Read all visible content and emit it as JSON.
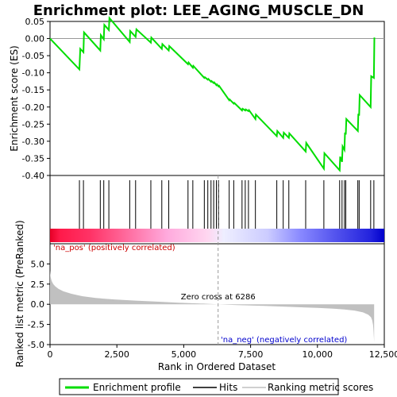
{
  "chart_data": {
    "type": "line",
    "title": "Enrichment plot: LEE_AGING_MUSCLE_DN",
    "top_panel": {
      "ylabel": "Enrichment score (ES)",
      "ylim": [
        -0.4,
        0.05
      ],
      "yticks": [
        0.05,
        0.0,
        -0.05,
        -0.1,
        -0.15,
        -0.2,
        -0.25,
        -0.3,
        -0.35,
        -0.4
      ],
      "ytick_labels": [
        "0.05",
        "0.00",
        "-0.05",
        "-0.10",
        "-0.15",
        "-0.20",
        "-0.25",
        "-0.30",
        "-0.35",
        "-0.40"
      ],
      "es_curve": {
        "name": "Enrichment profile",
        "color": "#00dd00",
        "x": [
          0,
          1100,
          1130,
          1250,
          1270,
          1880,
          1900,
          2010,
          2030,
          2200,
          2220,
          2980,
          3000,
          3200,
          3230,
          3770,
          3790,
          4180,
          4200,
          4440,
          4460,
          5160,
          5180,
          5340,
          5360,
          5770,
          5790,
          5900,
          5920,
          6020,
          6040,
          6120,
          6140,
          6220,
          6240,
          6300,
          6320,
          6700,
          6720,
          6870,
          6890,
          7180,
          7200,
          7300,
          7320,
          7420,
          7440,
          7680,
          7700,
          8480,
          8500,
          8720,
          8740,
          8930,
          8950,
          9560,
          9580,
          10240,
          10260,
          10830,
          10850,
          10920,
          10940,
          11010,
          11030,
          11060,
          11080,
          11510,
          11530,
          11560,
          11580,
          11990,
          12010,
          12110,
          12130
        ],
        "y": [
          0.0,
          -0.09,
          -0.03,
          -0.04,
          0.018,
          -0.035,
          0.01,
          -0.002,
          0.04,
          0.025,
          0.06,
          -0.01,
          0.022,
          0.005,
          0.027,
          -0.012,
          0.003,
          -0.03,
          -0.016,
          -0.035,
          -0.022,
          -0.075,
          -0.07,
          -0.085,
          -0.08,
          -0.115,
          -0.113,
          -0.12,
          -0.118,
          -0.126,
          -0.124,
          -0.13,
          -0.128,
          -0.136,
          -0.134,
          -0.14,
          -0.138,
          -0.18,
          -0.178,
          -0.19,
          -0.188,
          -0.21,
          -0.205,
          -0.21,
          -0.207,
          -0.212,
          -0.209,
          -0.235,
          -0.222,
          -0.285,
          -0.27,
          -0.29,
          -0.275,
          -0.29,
          -0.277,
          -0.33,
          -0.305,
          -0.38,
          -0.335,
          -0.385,
          -0.345,
          -0.36,
          -0.315,
          -0.325,
          -0.275,
          -0.28,
          -0.235,
          -0.27,
          -0.22,
          -0.225,
          -0.165,
          -0.2,
          -0.11,
          -0.115,
          0.003
        ],
        "line_width": 2
      }
    },
    "hits_panel": {
      "name": "Hits",
      "color": "#000000",
      "hit_positions": [
        1100,
        1250,
        1880,
        2010,
        2200,
        2980,
        3200,
        3770,
        4180,
        4440,
        5160,
        5340,
        5770,
        5900,
        6020,
        6120,
        6220,
        6300,
        6700,
        6870,
        7180,
        7300,
        7420,
        7680,
        8480,
        8720,
        8930,
        9560,
        10240,
        10830,
        10920,
        11010,
        11060,
        11510,
        11560,
        11990,
        12110
      ],
      "band_stops": [
        {
          "offset": 0.0,
          "color": "#e60026"
        },
        {
          "offset": 0.03,
          "color": "#ff1a4a"
        },
        {
          "offset": 0.12,
          "color": "#ff3366"
        },
        {
          "offset": 0.22,
          "color": "#ff6699"
        },
        {
          "offset": 0.35,
          "color": "#ffaadd"
        },
        {
          "offset": 0.47,
          "color": "#ffd6f0"
        },
        {
          "offset": 0.52,
          "color": "#eeeeff"
        },
        {
          "offset": 0.65,
          "color": "#ccccff"
        },
        {
          "offset": 0.75,
          "color": "#8888ff"
        },
        {
          "offset": 0.85,
          "color": "#5555ee"
        },
        {
          "offset": 0.96,
          "color": "#2222dd"
        },
        {
          "offset": 1.0,
          "color": "#0000cc"
        }
      ]
    },
    "bottom_panel": {
      "name": "Ranking metric scores",
      "ylabel": "Ranked list metric (PreRanked)",
      "ylim": [
        -5.0,
        7.5
      ],
      "yticks": [
        5.0,
        2.5,
        0.0,
        -2.5,
        -5.0
      ],
      "ytick_labels": [
        "5.0",
        "2.5",
        "0.0",
        "-2.5",
        "-5.0"
      ],
      "fill_color": "#c0c0c0",
      "metric_x": [
        0,
        20,
        60,
        120,
        200,
        320,
        500,
        800,
        1200,
        1700,
        2400,
        3200,
        4000,
        4800,
        5600,
        6286,
        7000,
        8000,
        9000,
        10000,
        10600,
        11000,
        11400,
        11700,
        11900,
        12000,
        12050,
        12080,
        12100,
        12120
      ],
      "metric_y": [
        4.2,
        3.4,
        2.9,
        2.5,
        2.2,
        1.9,
        1.6,
        1.3,
        1.0,
        0.78,
        0.6,
        0.45,
        0.32,
        0.2,
        0.1,
        0.0,
        -0.1,
        -0.2,
        -0.32,
        -0.45,
        -0.55,
        -0.65,
        -0.8,
        -1.0,
        -1.3,
        -1.6,
        -2.0,
        -2.6,
        -3.4,
        -4.7
      ],
      "zero_cross_label": "Zero cross at 6286",
      "zero_cross": 6286,
      "pos_label": "'na_pos' (positively correlated)",
      "neg_label": "'na_neg' (negatively correlated)",
      "pos_color": "#cc0000",
      "neg_color": "#0000cc"
    },
    "xlabel": "Rank in Ordered Dataset",
    "xlim": [
      0,
      12500
    ],
    "xticks": [
      0,
      2500,
      5000,
      7500,
      10000,
      12500
    ],
    "xtick_labels": [
      "0",
      "2,500",
      "5,000",
      "7,500",
      "10,000",
      "12,500"
    ],
    "legend": {
      "placement": "bottom",
      "entries": [
        {
          "label": "Enrichment profile",
          "color": "#00dd00"
        },
        {
          "label": "Hits",
          "color": "#000000"
        },
        {
          "label": "Ranking metric scores",
          "color": "#c0c0c0"
        }
      ]
    }
  }
}
